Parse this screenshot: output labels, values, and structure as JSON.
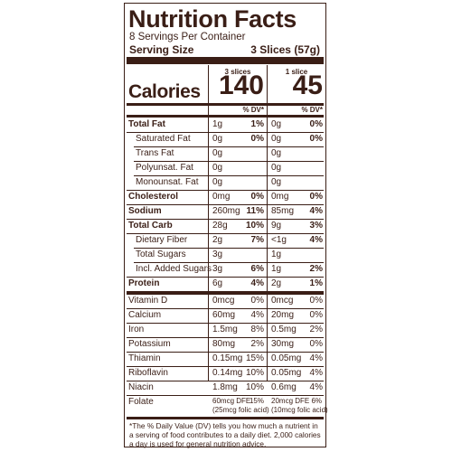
{
  "label": {
    "title": "Nutrition Facts",
    "servings_per_container": "8 Servings Per Container",
    "serving_size_label": "Serving Size",
    "serving_size_value": "3 Slices (57g)",
    "col1_header": "3 slices",
    "col2_header": "1 slice",
    "calories_label": "Calories",
    "calories_col1": "140",
    "calories_col2": "45",
    "pct_dv_col1": "% DV*",
    "pct_dv_col2": "% DV*",
    "rows": [
      {
        "name": "Total Fat",
        "a1": "1g",
        "p1": "1%",
        "a2": "0g",
        "p2": "0%"
      },
      {
        "name": "Saturated Fat",
        "a1": "0g",
        "p1": "0%",
        "a2": "0g",
        "p2": "0%"
      },
      {
        "name": "Trans Fat",
        "a1": "0g",
        "p1": "",
        "a2": "0g",
        "p2": ""
      },
      {
        "name": "Polyunsat. Fat",
        "a1": "0g",
        "p1": "",
        "a2": "0g",
        "p2": ""
      },
      {
        "name": "Monounsat.  Fat",
        "a1": "0g",
        "p1": "",
        "a2": "0g",
        "p2": ""
      },
      {
        "name": "Cholesterol",
        "a1": "0mg",
        "p1": "0%",
        "a2": "0mg",
        "p2": "0%"
      },
      {
        "name": "Sodium",
        "a1": "260mg",
        "p1": "11%",
        "a2": "85mg",
        "p2": "4%"
      },
      {
        "name": "Total Carb",
        "a1": "28g",
        "p1": "10%",
        "a2": "9g",
        "p2": "3%"
      },
      {
        "name": "Dietary Fiber",
        "a1": "2g",
        "p1": "7%",
        "a2": "<1g",
        "p2": "4%"
      },
      {
        "name": "Total Sugars",
        "a1": "3g",
        "p1": "",
        "a2": "1g",
        "p2": ""
      },
      {
        "name": "Incl. Added Sugars",
        "a1": "3g",
        "p1": "6%",
        "a2": "1g",
        "p2": "2%"
      },
      {
        "name": "Protein",
        "a1": "6g",
        "p1": "4%",
        "a2": "2g",
        "p2": "1%"
      },
      {
        "name": "Vitamin D",
        "a1": "0mcg",
        "p1": "0%",
        "a2": "0mcg",
        "p2": "0%"
      },
      {
        "name": "Calcium",
        "a1": "60mg",
        "p1": "4%",
        "a2": "20mg",
        "p2": "0%"
      },
      {
        "name": "Iron",
        "a1": "1.5mg",
        "p1": "8%",
        "a2": "0.5mg",
        "p2": "2%"
      },
      {
        "name": "Potassium",
        "a1": "80mg",
        "p1": "2%",
        "a2": "30mg",
        "p2": "0%"
      },
      {
        "name": "Thiamin",
        "a1": "0.15mg",
        "p1": "15%",
        "a2": "0.05mg",
        "p2": "4%"
      },
      {
        "name": "Riboflavin",
        "a1": "0.14mg",
        "p1": "10%",
        "a2": "0.05mg",
        "p2": "4%"
      },
      {
        "name": "Niacin",
        "a1": "1.8mg",
        "p1": "10%",
        "a2": "0.6mg",
        "p2": "4%"
      },
      {
        "name": "Folate",
        "a1": "60mcg DFE",
        "p1": "15%",
        "a1b": "(25mcg folic acid)",
        "a2": "20mcg DFE",
        "p2": "6%",
        "a2b": "(10mcg folic acid)"
      }
    ],
    "footnote": "*The % Daily Value (DV) tells you how much a nutrient in a serving of food contributes to a daily diet. 2,000 calories a day is used for general nutrition advice."
  }
}
